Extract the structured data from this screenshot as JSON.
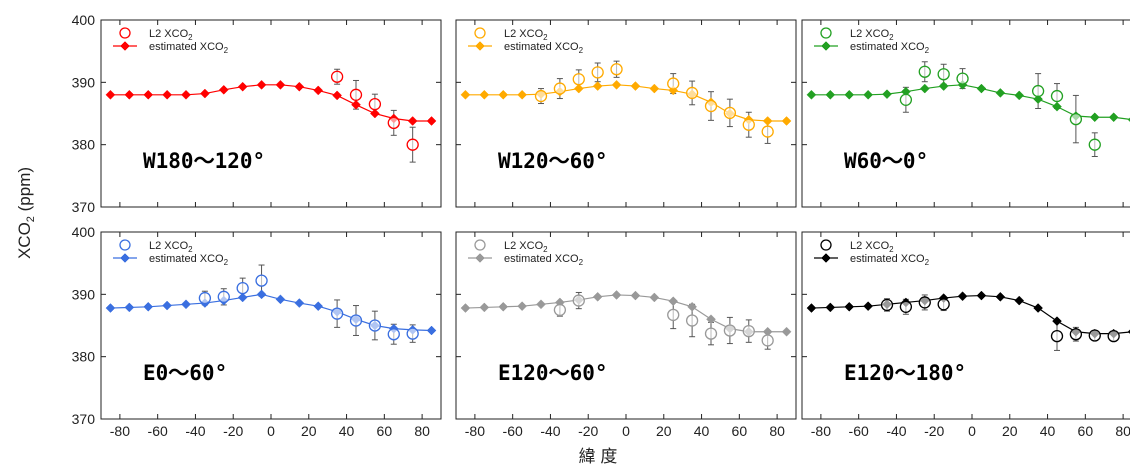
{
  "figure": {
    "ylabel_main": "XCO",
    "ylabel_sub": "2",
    "ylabel_unit": " (ppm)",
    "xlabel": "緯 度",
    "legend_symbol_label": "L2 XCO",
    "legend_line_label": "estimated XCO",
    "legend_sub": "2"
  },
  "axes": {
    "xlim": [
      -90,
      90
    ],
    "ylim": [
      370,
      400
    ],
    "xticks": [
      -80,
      -60,
      -40,
      -20,
      0,
      20,
      40,
      60,
      80
    ],
    "yticks": [
      370,
      380,
      390,
      400
    ]
  },
  "chart_data": [
    {
      "type": "scatter",
      "region_label": "W180～120°",
      "color": "#ff0000",
      "estimated_x": [
        -85,
        -75,
        -65,
        -55,
        -45,
        -35,
        -25,
        -15,
        -5,
        5,
        15,
        25,
        35,
        45,
        55,
        65,
        75,
        85
      ],
      "estimated_y": [
        388.0,
        388.0,
        388.0,
        388.0,
        388.0,
        388.2,
        388.8,
        389.3,
        389.6,
        389.6,
        389.3,
        388.7,
        387.9,
        386.4,
        385.0,
        384.2,
        383.8,
        383.8
      ],
      "l2_x": [
        35,
        45,
        55,
        65,
        75
      ],
      "l2_y": [
        390.9,
        388.0,
        386.5,
        383.5,
        380.0
      ],
      "l2_err": [
        1.2,
        2.3,
        1.6,
        2.0,
        2.8
      ]
    },
    {
      "type": "scatter",
      "region_label": "W120～60°",
      "color": "#ffaa00",
      "estimated_x": [
        -85,
        -75,
        -65,
        -55,
        -45,
        -35,
        -25,
        -15,
        -5,
        5,
        15,
        25,
        35,
        45,
        55,
        65,
        75,
        85
      ],
      "estimated_y": [
        388.0,
        388.0,
        388.0,
        388.0,
        388.1,
        388.5,
        389.0,
        389.4,
        389.6,
        389.4,
        389.0,
        388.7,
        388.1,
        386.8,
        385.0,
        384.0,
        383.8,
        383.8
      ],
      "l2_x": [
        -45,
        -35,
        -25,
        -15,
        -5,
        25,
        35,
        45,
        55,
        65,
        75
      ],
      "l2_y": [
        387.8,
        389.0,
        390.5,
        391.6,
        392.1,
        389.8,
        388.3,
        386.2,
        385.1,
        383.2,
        382.1
      ],
      "l2_err": [
        1.2,
        1.6,
        1.5,
        1.5,
        1.3,
        1.6,
        1.9,
        2.3,
        2.2,
        2.0,
        1.9
      ]
    },
    {
      "type": "scatter",
      "region_label": "W60～0°",
      "color": "#22a022",
      "estimated_x": [
        -85,
        -75,
        -65,
        -55,
        -45,
        -35,
        -25,
        -15,
        -5,
        5,
        15,
        25,
        35,
        45,
        55,
        65,
        75,
        85
      ],
      "estimated_y": [
        388.0,
        388.0,
        388.0,
        388.0,
        388.1,
        388.5,
        389.0,
        389.4,
        389.6,
        389.0,
        388.3,
        387.9,
        387.3,
        386.1,
        384.6,
        384.4,
        384.4,
        384.0
      ],
      "l2_x": [
        -35,
        -25,
        -15,
        -5,
        35,
        45,
        55,
        65
      ],
      "l2_y": [
        387.2,
        391.7,
        391.3,
        390.6,
        388.6,
        387.8,
        384.1,
        380.0
      ],
      "l2_err": [
        2.0,
        1.6,
        1.6,
        1.6,
        2.8,
        2.0,
        3.8,
        1.9
      ]
    },
    {
      "type": "scatter",
      "region_label": "E0～60°",
      "color": "#3a6fe0",
      "estimated_x": [
        -85,
        -75,
        -65,
        -55,
        -45,
        -35,
        -25,
        -15,
        -5,
        5,
        15,
        25,
        35,
        45,
        55,
        65,
        75,
        85
      ],
      "estimated_y": [
        387.8,
        387.9,
        388.0,
        388.2,
        388.4,
        388.6,
        389.0,
        389.5,
        390.0,
        389.2,
        388.6,
        388.1,
        387.2,
        386.0,
        385.0,
        384.5,
        384.3,
        384.2
      ],
      "l2_x": [
        -35,
        -25,
        -15,
        -5,
        35,
        45,
        55,
        65,
        75
      ],
      "l2_y": [
        389.4,
        389.6,
        391.0,
        392.2,
        386.9,
        385.8,
        385.0,
        383.6,
        383.7
      ],
      "l2_err": [
        1.1,
        1.3,
        1.6,
        2.5,
        2.2,
        2.4,
        2.3,
        1.6,
        1.4
      ]
    },
    {
      "type": "scatter",
      "region_label": "E120～60°",
      "color": "#999999",
      "estimated_x": [
        -85,
        -75,
        -65,
        -55,
        -45,
        -35,
        -25,
        -15,
        -5,
        5,
        15,
        25,
        35,
        45,
        55,
        65,
        75,
        85
      ],
      "estimated_y": [
        387.8,
        387.9,
        388.0,
        388.1,
        388.4,
        388.7,
        389.1,
        389.6,
        389.9,
        389.8,
        389.5,
        388.9,
        388.0,
        386.0,
        384.5,
        384.0,
        384.0,
        384.0
      ],
      "l2_x": [
        -35,
        -25,
        25,
        35,
        45,
        55,
        65,
        75
      ],
      "l2_y": [
        387.5,
        389.0,
        386.7,
        385.8,
        383.7,
        384.2,
        384.1,
        382.6
      ],
      "l2_err": [
        1.0,
        1.3,
        2.2,
        2.6,
        1.8,
        2.1,
        1.8,
        1.4
      ]
    },
    {
      "type": "scatter",
      "region_label": "E120～180°",
      "color": "#000000",
      "estimated_x": [
        -85,
        -75,
        -65,
        -55,
        -45,
        -35,
        -25,
        -15,
        -5,
        5,
        15,
        25,
        35,
        45,
        55,
        65,
        75,
        85
      ],
      "estimated_y": [
        387.8,
        387.9,
        388.0,
        388.1,
        388.4,
        388.7,
        389.0,
        389.4,
        389.7,
        389.8,
        389.6,
        389.0,
        387.8,
        385.7,
        384.0,
        383.7,
        383.7,
        384.0
      ],
      "l2_x": [
        -45,
        -35,
        -25,
        -15,
        45,
        55,
        65,
        75
      ],
      "l2_y": [
        388.3,
        388.0,
        388.7,
        388.4,
        383.3,
        383.6,
        383.4,
        383.3
      ],
      "l2_err": [
        1.0,
        1.2,
        1.2,
        1.0,
        2.3,
        1.1,
        0.8,
        0.8
      ]
    }
  ]
}
